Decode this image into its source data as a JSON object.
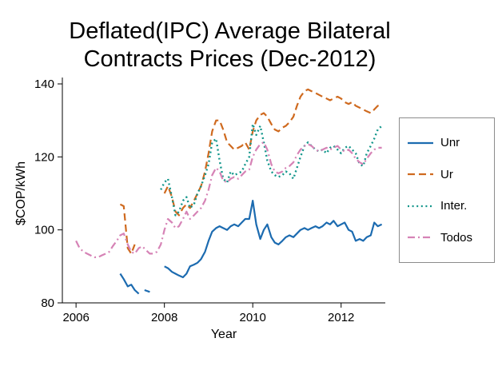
{
  "chart_data": {
    "type": "line",
    "title_line1": "Deflated(IPC) Average Bilateral",
    "title_line2": "Contracts Prices (Dec-2012)",
    "xlabel": "Year",
    "ylabel": "$COP/kWh",
    "xlim": [
      2005.69,
      2013.0
    ],
    "ylim": [
      80,
      140
    ],
    "xticks": [
      2006,
      2008,
      2010,
      2012
    ],
    "yticks": [
      80,
      100,
      120,
      140
    ],
    "grid": false,
    "legend_position": "right-outside",
    "series": [
      {
        "name": "Unr",
        "color": "#1c6bb0",
        "style": "solid",
        "points": [
          [
            2007.0,
            88
          ],
          [
            2007.08,
            86.5
          ],
          [
            2007.17,
            84.5
          ],
          [
            2007.25,
            85
          ],
          [
            2007.33,
            83.5
          ],
          [
            2007.42,
            82.5
          ],
          [
            2007.5,
            null
          ],
          [
            2007.55,
            83.5
          ],
          [
            2007.67,
            83
          ],
          [
            2007.75,
            null
          ],
          [
            2008.0,
            90
          ],
          [
            2008.08,
            89.5
          ],
          [
            2008.17,
            88.5
          ],
          [
            2008.25,
            88
          ],
          [
            2008.33,
            87.5
          ],
          [
            2008.42,
            87
          ],
          [
            2008.5,
            88
          ],
          [
            2008.58,
            90
          ],
          [
            2008.67,
            90.5
          ],
          [
            2008.75,
            91
          ],
          [
            2008.83,
            92
          ],
          [
            2008.92,
            94
          ],
          [
            2009.0,
            97
          ],
          [
            2009.08,
            99.5
          ],
          [
            2009.17,
            100.5
          ],
          [
            2009.25,
            101
          ],
          [
            2009.33,
            100.5
          ],
          [
            2009.42,
            100
          ],
          [
            2009.5,
            101
          ],
          [
            2009.58,
            101.5
          ],
          [
            2009.67,
            101
          ],
          [
            2009.75,
            102
          ],
          [
            2009.83,
            103
          ],
          [
            2009.92,
            103
          ],
          [
            2010.0,
            108
          ],
          [
            2010.08,
            101.5
          ],
          [
            2010.17,
            97.5
          ],
          [
            2010.25,
            100
          ],
          [
            2010.33,
            101.5
          ],
          [
            2010.42,
            98
          ],
          [
            2010.5,
            96.5
          ],
          [
            2010.58,
            96
          ],
          [
            2010.67,
            97
          ],
          [
            2010.75,
            98
          ],
          [
            2010.83,
            98.5
          ],
          [
            2010.92,
            98
          ],
          [
            2011.0,
            99
          ],
          [
            2011.08,
            100
          ],
          [
            2011.17,
            100.5
          ],
          [
            2011.25,
            100
          ],
          [
            2011.33,
            100.5
          ],
          [
            2011.42,
            101
          ],
          [
            2011.5,
            100.5
          ],
          [
            2011.58,
            101
          ],
          [
            2011.67,
            102
          ],
          [
            2011.75,
            101.5
          ],
          [
            2011.83,
            102.5
          ],
          [
            2011.92,
            101
          ],
          [
            2012.0,
            101.5
          ],
          [
            2012.08,
            102
          ],
          [
            2012.17,
            100
          ],
          [
            2012.25,
            99.5
          ],
          [
            2012.33,
            97
          ],
          [
            2012.42,
            97.5
          ],
          [
            2012.5,
            97
          ],
          [
            2012.58,
            98
          ],
          [
            2012.67,
            98.5
          ],
          [
            2012.75,
            102
          ],
          [
            2012.83,
            101
          ],
          [
            2012.92,
            101.5
          ]
        ]
      },
      {
        "name": "Ur",
        "color": "#cf6a1f",
        "style": "dashed",
        "points": [
          [
            2007.0,
            107
          ],
          [
            2007.08,
            106.5
          ],
          [
            2007.17,
            95
          ],
          [
            2007.25,
            93.5
          ],
          [
            2007.33,
            96
          ],
          [
            2007.42,
            null
          ],
          [
            2008.0,
            110
          ],
          [
            2008.08,
            112
          ],
          [
            2008.17,
            109
          ],
          [
            2008.25,
            105
          ],
          [
            2008.33,
            104
          ],
          [
            2008.42,
            106
          ],
          [
            2008.5,
            107
          ],
          [
            2008.58,
            106
          ],
          [
            2008.67,
            108
          ],
          [
            2008.75,
            110
          ],
          [
            2008.83,
            112
          ],
          [
            2008.92,
            116
          ],
          [
            2009.0,
            121
          ],
          [
            2009.08,
            127
          ],
          [
            2009.17,
            130
          ],
          [
            2009.25,
            130
          ],
          [
            2009.33,
            127.5
          ],
          [
            2009.42,
            124
          ],
          [
            2009.5,
            123
          ],
          [
            2009.58,
            122
          ],
          [
            2009.67,
            122.5
          ],
          [
            2009.75,
            123
          ],
          [
            2009.83,
            124
          ],
          [
            2009.92,
            122
          ],
          [
            2010.0,
            127
          ],
          [
            2010.08,
            130
          ],
          [
            2010.17,
            131.5
          ],
          [
            2010.25,
            132
          ],
          [
            2010.33,
            131
          ],
          [
            2010.42,
            129
          ],
          [
            2010.5,
            127.5
          ],
          [
            2010.58,
            127
          ],
          [
            2010.67,
            128
          ],
          [
            2010.75,
            128.5
          ],
          [
            2010.83,
            129.5
          ],
          [
            2010.92,
            131
          ],
          [
            2011.0,
            134
          ],
          [
            2011.08,
            136.5
          ],
          [
            2011.17,
            138
          ],
          [
            2011.25,
            138.5
          ],
          [
            2011.33,
            138
          ],
          [
            2011.42,
            137.5
          ],
          [
            2011.5,
            137
          ],
          [
            2011.58,
            136.5
          ],
          [
            2011.67,
            136
          ],
          [
            2011.75,
            135.5
          ],
          [
            2011.83,
            136
          ],
          [
            2011.92,
            136.5
          ],
          [
            2012.0,
            136
          ],
          [
            2012.08,
            135
          ],
          [
            2012.17,
            134.5
          ],
          [
            2012.25,
            135
          ],
          [
            2012.33,
            134
          ],
          [
            2012.42,
            133.5
          ],
          [
            2012.5,
            133
          ],
          [
            2012.58,
            132.5
          ],
          [
            2012.67,
            132
          ],
          [
            2012.75,
            133
          ],
          [
            2012.83,
            134
          ],
          [
            2012.92,
            133.5
          ]
        ]
      },
      {
        "name": "Inter.",
        "color": "#12968b",
        "style": "dotted",
        "points": [
          [
            2007.92,
            111
          ],
          [
            2008.0,
            113
          ],
          [
            2008.08,
            114
          ],
          [
            2008.17,
            109
          ],
          [
            2008.25,
            104
          ],
          [
            2008.33,
            105
          ],
          [
            2008.42,
            108
          ],
          [
            2008.5,
            109
          ],
          [
            2008.58,
            106
          ],
          [
            2008.67,
            107
          ],
          [
            2008.75,
            110
          ],
          [
            2008.83,
            112
          ],
          [
            2008.92,
            115
          ],
          [
            2009.0,
            118
          ],
          [
            2009.08,
            124
          ],
          [
            2009.17,
            125
          ],
          [
            2009.25,
            119
          ],
          [
            2009.33,
            114
          ],
          [
            2009.42,
            113
          ],
          [
            2009.5,
            116
          ],
          [
            2009.58,
            115
          ],
          [
            2009.67,
            115.5
          ],
          [
            2009.75,
            116
          ],
          [
            2009.83,
            118
          ],
          [
            2009.92,
            120
          ],
          [
            2010.0,
            129
          ],
          [
            2010.08,
            126
          ],
          [
            2010.17,
            128.5
          ],
          [
            2010.25,
            124
          ],
          [
            2010.33,
            119
          ],
          [
            2010.42,
            116
          ],
          [
            2010.5,
            115
          ],
          [
            2010.58,
            114.5
          ],
          [
            2010.67,
            115
          ],
          [
            2010.75,
            116
          ],
          [
            2010.83,
            115.5
          ],
          [
            2010.92,
            114
          ],
          [
            2011.0,
            117
          ],
          [
            2011.08,
            120
          ],
          [
            2011.17,
            123
          ],
          [
            2011.25,
            124
          ],
          [
            2011.33,
            123
          ],
          [
            2011.42,
            122
          ],
          [
            2011.5,
            121.5
          ],
          [
            2011.58,
            122
          ],
          [
            2011.67,
            121
          ],
          [
            2011.75,
            122.5
          ],
          [
            2011.83,
            123
          ],
          [
            2011.92,
            122
          ],
          [
            2012.0,
            121
          ],
          [
            2012.08,
            122.5
          ],
          [
            2012.17,
            123
          ],
          [
            2012.25,
            122
          ],
          [
            2012.33,
            121
          ],
          [
            2012.42,
            118
          ],
          [
            2012.5,
            117.5
          ],
          [
            2012.58,
            121
          ],
          [
            2012.67,
            123
          ],
          [
            2012.75,
            125
          ],
          [
            2012.83,
            127.5
          ],
          [
            2012.92,
            128.5
          ]
        ]
      },
      {
        "name": "Todos",
        "color": "#d683b6",
        "style": "dashdot",
        "points": [
          [
            2006.0,
            97
          ],
          [
            2006.08,
            95
          ],
          [
            2006.17,
            94
          ],
          [
            2006.25,
            93.5
          ],
          [
            2006.33,
            93
          ],
          [
            2006.42,
            92.5
          ],
          [
            2006.5,
            92.5
          ],
          [
            2006.58,
            93
          ],
          [
            2006.67,
            93.5
          ],
          [
            2006.75,
            94
          ],
          [
            2006.83,
            95.5
          ],
          [
            2006.92,
            97
          ],
          [
            2007.0,
            98.5
          ],
          [
            2007.08,
            99
          ],
          [
            2007.17,
            96
          ],
          [
            2007.25,
            94
          ],
          [
            2007.33,
            93.5
          ],
          [
            2007.42,
            95
          ],
          [
            2007.5,
            95.5
          ],
          [
            2007.58,
            94.5
          ],
          [
            2007.67,
            93.5
          ],
          [
            2007.75,
            93.5
          ],
          [
            2007.83,
            94
          ],
          [
            2007.92,
            96
          ],
          [
            2008.0,
            100
          ],
          [
            2008.08,
            103
          ],
          [
            2008.17,
            102
          ],
          [
            2008.25,
            100.5
          ],
          [
            2008.33,
            101
          ],
          [
            2008.42,
            103
          ],
          [
            2008.5,
            105
          ],
          [
            2008.58,
            103
          ],
          [
            2008.67,
            104
          ],
          [
            2008.75,
            105
          ],
          [
            2008.83,
            106
          ],
          [
            2008.92,
            108
          ],
          [
            2009.0,
            111
          ],
          [
            2009.08,
            115
          ],
          [
            2009.17,
            117
          ],
          [
            2009.25,
            116
          ],
          [
            2009.33,
            113.5
          ],
          [
            2009.42,
            113
          ],
          [
            2009.5,
            114
          ],
          [
            2009.58,
            114.5
          ],
          [
            2009.67,
            114
          ],
          [
            2009.75,
            115
          ],
          [
            2009.83,
            116
          ],
          [
            2009.92,
            116.5
          ],
          [
            2010.0,
            120
          ],
          [
            2010.08,
            122
          ],
          [
            2010.17,
            123.5
          ],
          [
            2010.25,
            124
          ],
          [
            2010.33,
            122
          ],
          [
            2010.42,
            118
          ],
          [
            2010.5,
            116
          ],
          [
            2010.58,
            115.5
          ],
          [
            2010.67,
            116
          ],
          [
            2010.75,
            117
          ],
          [
            2010.83,
            117.5
          ],
          [
            2010.92,
            118.5
          ],
          [
            2011.0,
            120.5
          ],
          [
            2011.08,
            122
          ],
          [
            2011.17,
            123
          ],
          [
            2011.25,
            123.5
          ],
          [
            2011.33,
            123
          ],
          [
            2011.42,
            122
          ],
          [
            2011.5,
            121.5
          ],
          [
            2011.58,
            122
          ],
          [
            2011.67,
            122.5
          ],
          [
            2011.75,
            122
          ],
          [
            2011.83,
            122.5
          ],
          [
            2011.92,
            123
          ],
          [
            2012.0,
            122
          ],
          [
            2012.08,
            121.5
          ],
          [
            2012.17,
            122
          ],
          [
            2012.25,
            121
          ],
          [
            2012.33,
            119.5
          ],
          [
            2012.42,
            118.5
          ],
          [
            2012.5,
            118
          ],
          [
            2012.58,
            119.5
          ],
          [
            2012.67,
            121
          ],
          [
            2012.75,
            122
          ],
          [
            2012.83,
            122.5
          ],
          [
            2012.92,
            122.5
          ]
        ]
      }
    ]
  }
}
